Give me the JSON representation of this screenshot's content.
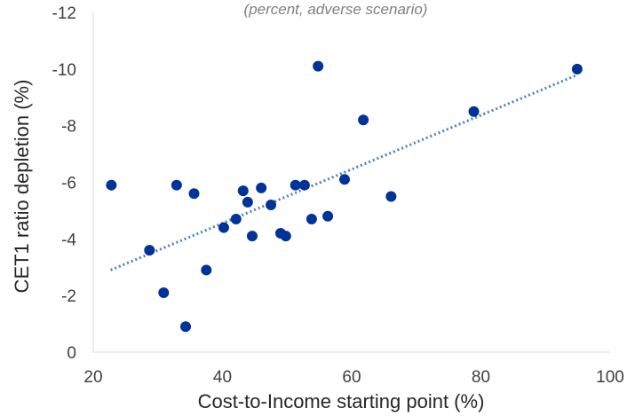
{
  "chart_data": {
    "type": "scatter",
    "subtitle": "(percent, adverse scenario)",
    "xlabel": "Cost-to-Income starting point (%)",
    "ylabel": "CET1 ratio depletion (%)",
    "xlim": [
      20,
      100
    ],
    "ylim": [
      0,
      -12
    ],
    "x_ticks": [
      "20",
      "40",
      "60",
      "80",
      "100"
    ],
    "y_ticks": [
      "0",
      "-2",
      "-4",
      "-6",
      "-8",
      "-10",
      "-12"
    ],
    "grid": false,
    "legend": "none",
    "marker_color": "#003399",
    "trendline_color": "#4f81bd",
    "trendline": {
      "style": "dotted",
      "x": [
        22.7,
        95
      ],
      "y": [
        -2.9,
        -9.8
      ]
    },
    "points": [
      {
        "x": 22.8,
        "y": -5.9
      },
      {
        "x": 28.7,
        "y": -3.6
      },
      {
        "x": 30.9,
        "y": -2.1
      },
      {
        "x": 32.9,
        "y": -5.9
      },
      {
        "x": 34.3,
        "y": -0.9
      },
      {
        "x": 35.6,
        "y": -5.6
      },
      {
        "x": 37.5,
        "y": -2.9
      },
      {
        "x": 40.2,
        "y": -4.4
      },
      {
        "x": 42.1,
        "y": -4.7
      },
      {
        "x": 43.2,
        "y": -5.7
      },
      {
        "x": 43.9,
        "y": -5.3
      },
      {
        "x": 44.6,
        "y": -4.1
      },
      {
        "x": 46.0,
        "y": -5.8
      },
      {
        "x": 47.5,
        "y": -5.2
      },
      {
        "x": 49.0,
        "y": -4.2
      },
      {
        "x": 49.8,
        "y": -4.1
      },
      {
        "x": 51.3,
        "y": -5.9
      },
      {
        "x": 52.7,
        "y": -5.9
      },
      {
        "x": 53.8,
        "y": -4.7
      },
      {
        "x": 54.8,
        "y": -10.1
      },
      {
        "x": 56.3,
        "y": -4.8
      },
      {
        "x": 58.9,
        "y": -6.1
      },
      {
        "x": 61.8,
        "y": -8.2
      },
      {
        "x": 66.1,
        "y": -5.5
      },
      {
        "x": 78.9,
        "y": -8.5
      },
      {
        "x": 94.9,
        "y": -10.0
      }
    ]
  }
}
